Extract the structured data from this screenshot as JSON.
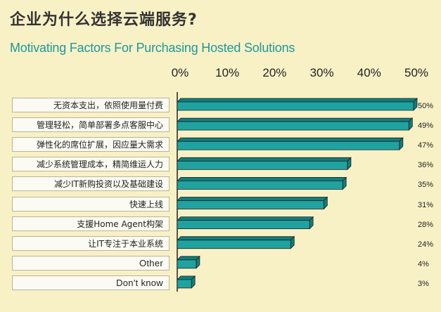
{
  "title_cn": "企业为什么选择云端服务?",
  "title_en": "Motivating Factors For Purchasing Hosted Solutions",
  "colors": {
    "bar": "#1fa3a1",
    "bar_top": "#0e7f7d",
    "background": "#f9f1c6",
    "axis": "#222222"
  },
  "chart_data": {
    "type": "bar",
    "orientation": "horizontal",
    "title": "企业为什么选择云端服务?",
    "subtitle": "Motivating Factors For Purchasing Hosted Solutions",
    "xlim": [
      0,
      50
    ],
    "x_ticks": [
      "0%",
      "10%",
      "20%",
      "30%",
      "40%",
      "50%"
    ],
    "categories": [
      "无资本支出，依照使用量付费",
      "管理轻松，简单部署多点客服中心",
      "弹性化的席位扩展，因应量大需求",
      "减少系统管理成本，精简维运人力",
      "减少IT新购投资以及基础建设",
      "快速上线",
      "支援Home Agent构架",
      "让IT专注于本业系统",
      "Other",
      "Don't  know"
    ],
    "values": [
      50,
      49,
      47,
      36,
      35,
      31,
      28,
      24,
      4,
      3
    ],
    "value_labels": [
      "50%",
      "49%",
      "47%",
      "36%",
      "35%",
      "31%",
      "28%",
      "24%",
      "4%",
      "3%"
    ],
    "grid": false
  }
}
